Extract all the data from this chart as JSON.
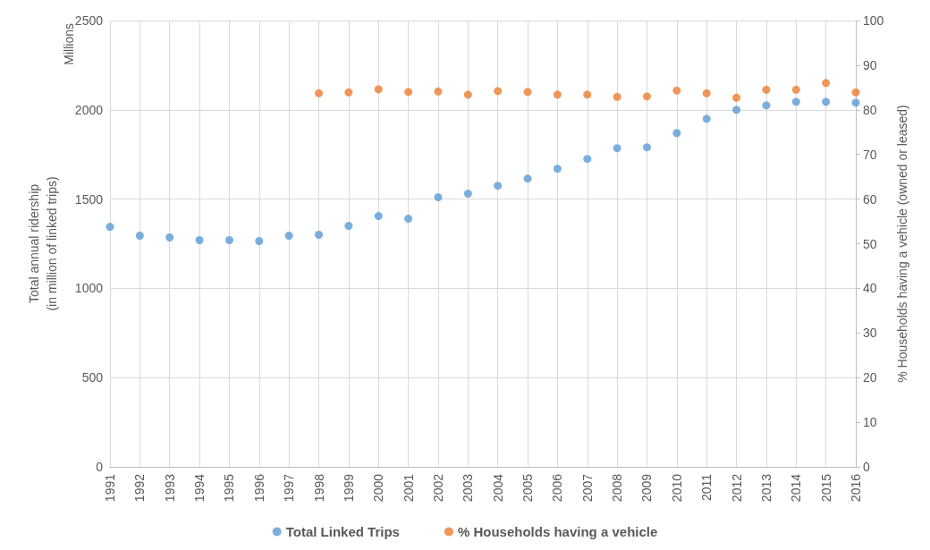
{
  "chart_data": {
    "type": "scatter",
    "categories": [
      "1991",
      "1992",
      "1993",
      "1994",
      "1995",
      "1996",
      "1997",
      "1998",
      "1999",
      "2000",
      "2001",
      "2002",
      "2003",
      "2004",
      "2005",
      "2006",
      "2007",
      "2008",
      "2009",
      "2010",
      "2011",
      "2012",
      "2013",
      "2014",
      "2015",
      "2016"
    ],
    "ylabel": "Total annual ridership\n(in million of linked trips)",
    "y2label": "% Households having a vehicle (owned or leased)",
    "annotations": [
      "Millions"
    ],
    "ylim": [
      0,
      2500
    ],
    "yticks": [
      0,
      500,
      1000,
      1500,
      2000,
      2500
    ],
    "y2lim": [
      0,
      100
    ],
    "y2ticks": [
      0,
      10,
      20,
      30,
      40,
      50,
      60,
      70,
      80,
      90,
      100
    ],
    "grid": true,
    "legend": "bottom",
    "marker": "circle",
    "series": [
      {
        "name": "Total Linked Trips",
        "color": "#5b9bd5",
        "values": [
          1345,
          1295,
          1285,
          1270,
          1270,
          1265,
          1295,
          1300,
          1350,
          1405,
          1390,
          1510,
          1530,
          1575,
          1615,
          1670,
          1725,
          1785,
          1790,
          1870,
          1950,
          2000,
          2025,
          2045,
          2045,
          2040
        ]
      },
      {
        "name": "% Households having a vehicle",
        "color": "#ed7d31",
        "axis": "y2",
        "values": [
          null,
          null,
          null,
          null,
          null,
          null,
          null,
          83.7,
          83.9,
          84.6,
          84.0,
          84.1,
          83.4,
          84.2,
          84.0,
          83.4,
          83.4,
          82.9,
          83.0,
          84.3,
          83.7,
          82.7,
          84.5,
          84.5,
          86.0,
          83.9
        ]
      }
    ]
  }
}
